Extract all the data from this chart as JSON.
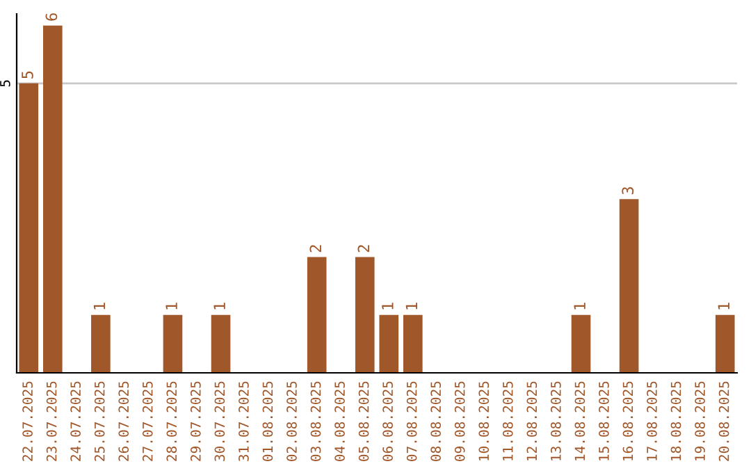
{
  "chart_data": {
    "type": "bar",
    "categories": [
      "22.07.2025",
      "23.07.2025",
      "24.07.2025",
      "25.07.2025",
      "26.07.2025",
      "27.07.2025",
      "28.07.2025",
      "29.07.2025",
      "30.07.2025",
      "31.07.2025",
      "01.08.2025",
      "02.08.2025",
      "03.08.2025",
      "04.08.2025",
      "05.08.2025",
      "06.08.2025",
      "07.08.2025",
      "08.08.2025",
      "09.08.2025",
      "10.08.2025",
      "11.08.2025",
      "12.08.2025",
      "13.08.2025",
      "14.08.2025",
      "15.08.2025",
      "16.08.2025",
      "17.08.2025",
      "18.08.2025",
      "19.08.2025",
      "20.08.2025"
    ],
    "values": [
      5,
      6,
      0,
      1,
      0,
      0,
      1,
      0,
      1,
      0,
      0,
      0,
      2,
      0,
      2,
      1,
      1,
      0,
      0,
      0,
      0,
      0,
      0,
      1,
      0,
      3,
      0,
      0,
      0,
      1
    ],
    "value_labels": [
      "5",
      "6",
      null,
      "1",
      null,
      null,
      "1",
      null,
      "1",
      null,
      null,
      null,
      "2",
      null,
      "2",
      "1",
      "1",
      null,
      null,
      null,
      null,
      null,
      null,
      "1",
      null,
      "3",
      null,
      null,
      null,
      "1"
    ],
    "color": "#a0572a",
    "ylim": [
      0,
      6.2
    ],
    "yticks": [
      5
    ],
    "grid": "y"
  }
}
